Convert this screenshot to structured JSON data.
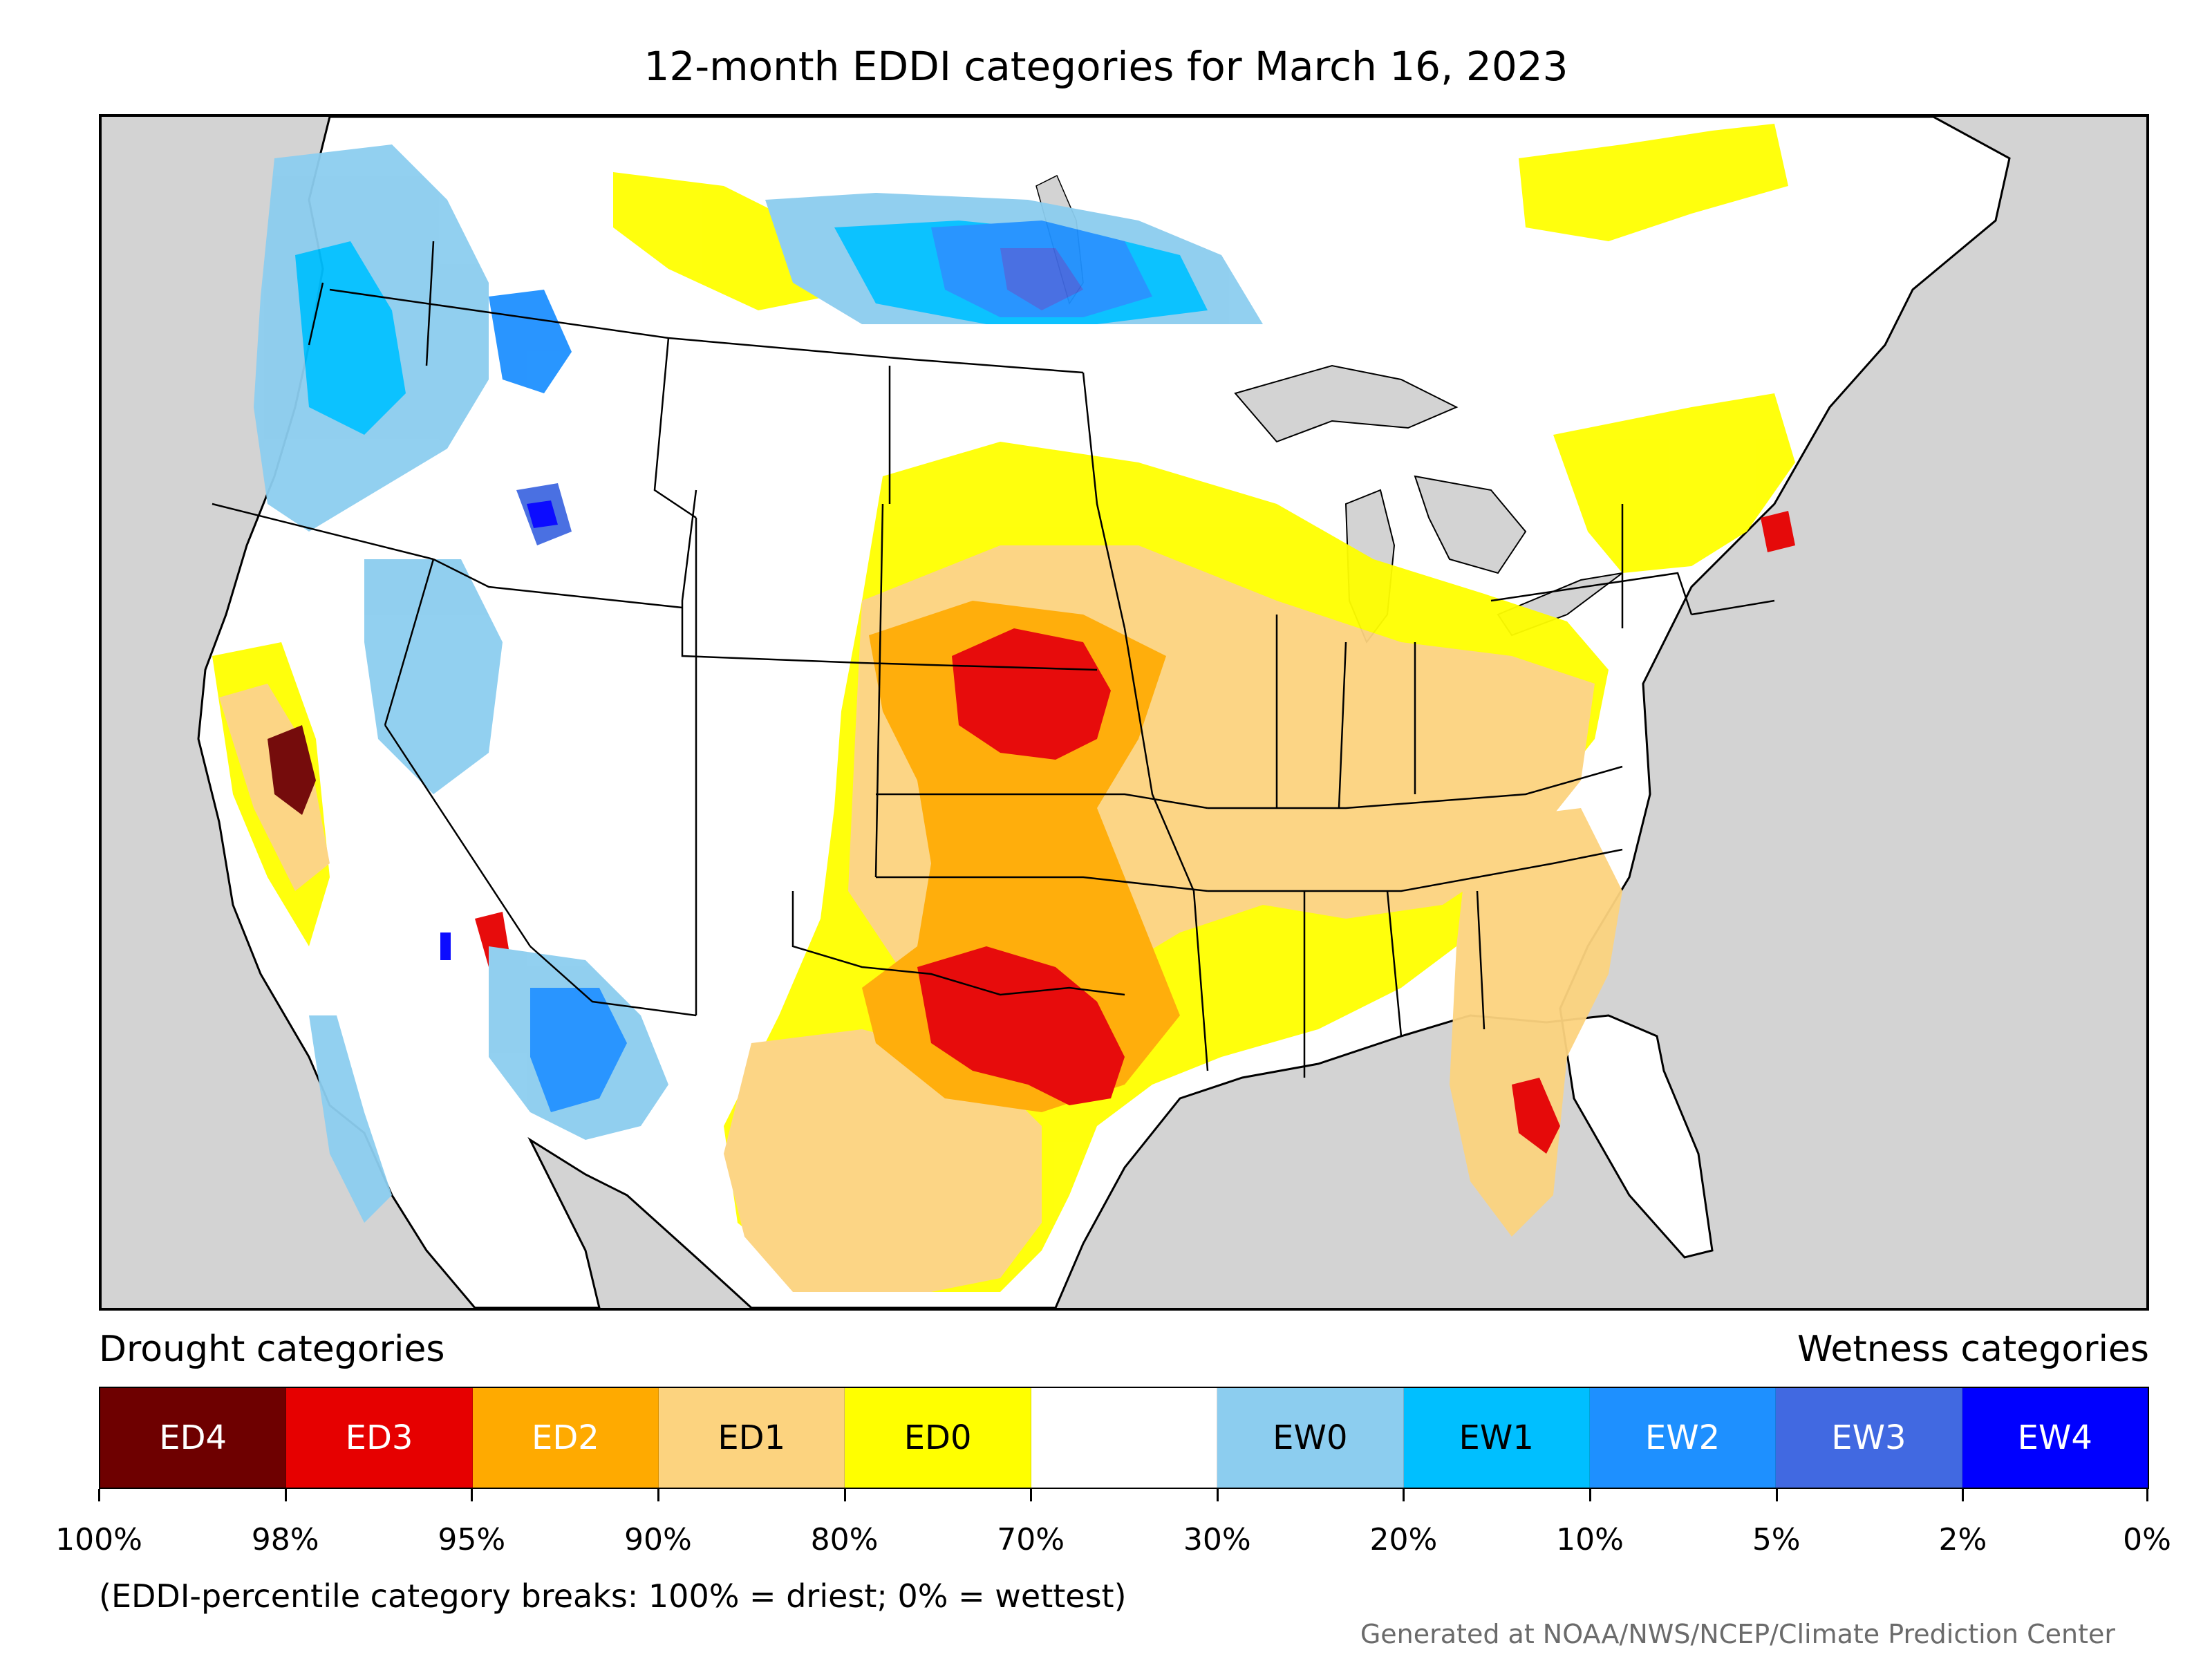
{
  "title": "12-month EDDI categories for March 16, 2023",
  "legend": {
    "drought_heading": "Drought categories",
    "wetness_heading": "Wetness categories",
    "categories": [
      {
        "label": "ED4",
        "color": "#6e0000",
        "text_color": "#ffffff"
      },
      {
        "label": "ED3",
        "color": "#e60000",
        "text_color": "#ffffff"
      },
      {
        "label": "ED2",
        "color": "#ffaa00",
        "text_color": "#ffffff"
      },
      {
        "label": "ED1",
        "color": "#fcd37f",
        "text_color": "#000000"
      },
      {
        "label": "ED0",
        "color": "#ffff00",
        "text_color": "#000000"
      },
      {
        "label": "",
        "color": "#ffffff",
        "text_color": "#000000"
      },
      {
        "label": "EW0",
        "color": "#8ccdef",
        "text_color": "#000000"
      },
      {
        "label": "EW1",
        "color": "#00bfff",
        "text_color": "#000000"
      },
      {
        "label": "EW2",
        "color": "#1e90ff",
        "text_color": "#ffffff"
      },
      {
        "label": "EW3",
        "color": "#4169e1",
        "text_color": "#ffffff"
      },
      {
        "label": "EW4",
        "color": "#0000ff",
        "text_color": "#ffffff"
      }
    ],
    "tick_labels": [
      "100%",
      "98%",
      "95%",
      "90%",
      "80%",
      "70%",
      "30%",
      "20%",
      "10%",
      "5%",
      "2%",
      "0%"
    ],
    "note": "(EDDI-percentile category breaks: 100% = driest; 0% = wettest)"
  },
  "credit": "Generated at NOAA/NWS/NCEP/Climate Prediction Center",
  "map": {
    "background_color": "#d3d3d3",
    "land_color": "#ffffff",
    "water_color": "#d3d3d3"
  }
}
